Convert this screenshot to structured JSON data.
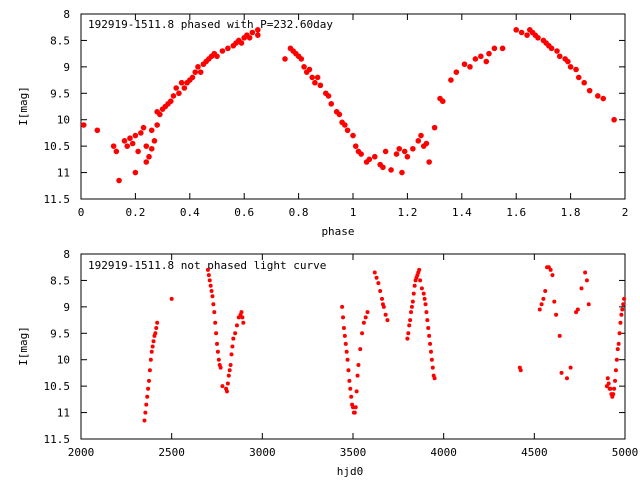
{
  "chart_data": [
    {
      "type": "scatter",
      "title": "192919-1511.8 phased with P=232.60day",
      "xlabel": "phase",
      "ylabel": "I[mag]",
      "xlim": [
        0,
        2
      ],
      "ylim": [
        11.5,
        8
      ],
      "y_inverted": true,
      "grid": false,
      "marker_color": "#ff0000",
      "x_ticks": [
        "0",
        "0.2",
        "0.4",
        "0.6",
        "0.8",
        "1",
        "1.2",
        "1.4",
        "1.6",
        "1.8",
        "2"
      ],
      "x_tick_values": [
        0,
        0.2,
        0.4,
        0.6,
        0.8,
        1.0,
        1.2,
        1.4,
        1.6,
        1.8,
        2.0
      ],
      "y_ticks": [
        "8",
        "8.5",
        "9",
        "9.5",
        "10",
        "10.5",
        "11",
        "11.5"
      ],
      "y_tick_values": [
        8,
        8.5,
        9,
        9.5,
        10,
        10.5,
        11,
        11.5
      ],
      "series": [
        {
          "x": [
            0.01,
            0.06,
            0.12,
            0.13,
            0.14,
            0.16,
            0.17,
            0.18,
            0.19,
            0.2,
            0.2,
            0.21,
            0.22,
            0.23,
            0.24,
            0.24,
            0.25,
            0.26,
            0.26,
            0.27,
            0.28,
            0.28,
            0.29,
            0.3,
            0.31,
            0.32,
            0.33,
            0.34,
            0.35,
            0.36,
            0.37,
            0.38,
            0.39,
            0.4,
            0.41,
            0.42,
            0.43,
            0.44,
            0.45,
            0.46,
            0.47,
            0.48,
            0.49,
            0.5,
            0.52,
            0.54,
            0.56,
            0.57,
            0.58,
            0.59,
            0.6,
            0.61,
            0.62,
            0.63,
            0.65,
            0.65,
            0.75,
            0.77,
            0.78,
            0.79,
            0.8,
            0.81,
            0.82,
            0.83,
            0.84,
            0.85,
            0.86,
            0.87,
            0.88,
            0.9,
            0.91,
            0.92,
            0.94,
            0.95,
            0.96,
            0.97,
            0.98,
            1.0,
            1.01,
            1.02,
            1.03,
            1.05,
            1.06,
            1.08,
            1.1,
            1.11,
            1.12,
            1.14,
            1.16,
            1.17,
            1.18,
            1.19,
            1.2,
            1.22,
            1.24,
            1.25,
            1.26,
            1.27,
            1.28,
            1.3,
            1.32,
            1.33,
            1.36,
            1.38,
            1.41,
            1.43,
            1.45,
            1.47,
            1.49,
            1.5,
            1.52,
            1.55,
            1.6,
            1.62,
            1.64,
            1.65,
            1.66,
            1.67,
            1.68,
            1.7,
            1.71,
            1.72,
            1.73,
            1.75,
            1.76,
            1.78,
            1.79,
            1.8,
            1.82,
            1.83,
            1.85,
            1.87,
            1.9,
            1.92,
            1.96
          ],
          "y": [
            10.1,
            10.2,
            10.5,
            10.6,
            11.15,
            10.4,
            10.5,
            10.35,
            10.45,
            10.3,
            11.0,
            10.6,
            10.25,
            10.15,
            10.5,
            10.8,
            10.7,
            10.55,
            10.2,
            10.4,
            10.1,
            9.85,
            9.9,
            9.8,
            9.75,
            9.7,
            9.65,
            9.55,
            9.4,
            9.5,
            9.3,
            9.4,
            9.3,
            9.25,
            9.2,
            9.1,
            9.0,
            9.1,
            8.95,
            8.9,
            8.85,
            8.8,
            8.75,
            8.8,
            8.7,
            8.65,
            8.6,
            8.55,
            8.5,
            8.55,
            8.45,
            8.4,
            8.45,
            8.35,
            8.3,
            8.4,
            8.85,
            8.65,
            8.7,
            8.75,
            8.8,
            8.85,
            9.0,
            9.1,
            9.05,
            9.2,
            9.3,
            9.2,
            9.35,
            9.5,
            9.55,
            9.7,
            9.85,
            9.9,
            10.05,
            10.1,
            10.2,
            10.3,
            10.5,
            10.6,
            10.65,
            10.8,
            10.75,
            10.7,
            10.85,
            10.9,
            10.6,
            10.95,
            10.65,
            10.55,
            11.0,
            10.6,
            10.7,
            10.55,
            10.4,
            10.3,
            10.5,
            10.45,
            10.8,
            10.15,
            9.6,
            9.65,
            9.25,
            9.1,
            8.95,
            9.0,
            8.85,
            8.8,
            8.9,
            8.75,
            8.65,
            8.65,
            8.3,
            8.35,
            8.4,
            8.3,
            8.35,
            8.4,
            8.45,
            8.5,
            8.55,
            8.6,
            8.65,
            8.7,
            8.8,
            8.85,
            8.9,
            9.0,
            9.05,
            9.2,
            9.3,
            9.45,
            9.55,
            9.6,
            10.0
          ]
        }
      ]
    },
    {
      "type": "scatter",
      "title": "192919-1511.8 not phased light curve",
      "xlabel": "hjd0",
      "ylabel": "I[mag]",
      "xlim": [
        2000,
        5000
      ],
      "ylim": [
        11.5,
        8
      ],
      "y_inverted": true,
      "grid": false,
      "marker_color": "#ff0000",
      "x_ticks": [
        "2000",
        "2500",
        "3000",
        "3500",
        "4000",
        "4500",
        "5000"
      ],
      "x_tick_values": [
        2000,
        2500,
        3000,
        3500,
        4000,
        4500,
        5000
      ],
      "y_ticks": [
        "8",
        "8.5",
        "9",
        "9.5",
        "10",
        "10.5",
        "11",
        "11.5"
      ],
      "y_tick_values": [
        8,
        8.5,
        9,
        9.5,
        10,
        10.5,
        11,
        11.5
      ],
      "series": [
        {
          "x": [
            2350,
            2355,
            2360,
            2365,
            2370,
            2375,
            2380,
            2385,
            2390,
            2395,
            2400,
            2405,
            2410,
            2415,
            2420,
            2500,
            2700,
            2705,
            2710,
            2715,
            2720,
            2725,
            2730,
            2735,
            2740,
            2745,
            2750,
            2755,
            2760,
            2765,
            2770,
            2780,
            2800,
            2805,
            2810,
            2815,
            2820,
            2825,
            2830,
            2835,
            2840,
            2850,
            2860,
            2870,
            2880,
            2885,
            2890,
            2895,
            3440,
            3445,
            3450,
            3455,
            3460,
            3465,
            3470,
            3475,
            3480,
            3485,
            3490,
            3495,
            3500,
            3505,
            3510,
            3515,
            3520,
            3525,
            3530,
            3540,
            3550,
            3560,
            3570,
            3580,
            3620,
            3630,
            3640,
            3650,
            3660,
            3665,
            3670,
            3680,
            3690,
            3800,
            3805,
            3810,
            3815,
            3820,
            3825,
            3830,
            3835,
            3840,
            3845,
            3850,
            3855,
            3860,
            3865,
            3870,
            3880,
            3890,
            3895,
            3900,
            3905,
            3910,
            3915,
            3920,
            3925,
            3930,
            3935,
            3940,
            3945,
            3950,
            4420,
            4425,
            4530,
            4540,
            4550,
            4560,
            4570,
            4580,
            4590,
            4600,
            4610,
            4620,
            4640,
            4650,
            4680,
            4700,
            4730,
            4740,
            4760,
            4780,
            4790,
            4800,
            4900,
            4905,
            4910,
            4915,
            4920,
            4925,
            4930,
            4935,
            4940,
            4945,
            4950,
            4955,
            4960,
            4965,
            4970,
            4975,
            4980,
            4985,
            4990,
            4995
          ],
          "y": [
            11.15,
            11.0,
            10.85,
            10.7,
            10.55,
            10.4,
            10.2,
            10.0,
            9.85,
            9.75,
            9.65,
            9.55,
            9.5,
            9.4,
            9.3,
            8.85,
            8.3,
            8.4,
            8.5,
            8.6,
            8.7,
            8.8,
            8.95,
            9.1,
            9.3,
            9.5,
            9.7,
            9.85,
            10.0,
            10.1,
            10.15,
            10.5,
            10.55,
            10.6,
            10.45,
            10.3,
            10.2,
            10.1,
            9.9,
            9.75,
            9.6,
            9.5,
            9.35,
            9.2,
            9.15,
            9.1,
            9.2,
            9.3,
            9.0,
            9.2,
            9.4,
            9.55,
            9.7,
            9.85,
            10.0,
            10.2,
            10.4,
            10.55,
            10.7,
            10.85,
            10.9,
            11.0,
            11.0,
            10.9,
            10.6,
            10.3,
            10.1,
            9.8,
            9.5,
            9.3,
            9.2,
            9.1,
            8.35,
            8.45,
            8.55,
            8.7,
            8.85,
            8.95,
            9.0,
            9.15,
            9.25,
            9.6,
            9.5,
            9.35,
            9.25,
            9.1,
            9.0,
            8.9,
            8.75,
            8.6,
            8.5,
            8.45,
            8.4,
            8.35,
            8.3,
            8.5,
            8.65,
            8.75,
            8.85,
            8.95,
            9.1,
            9.25,
            9.4,
            9.55,
            9.7,
            9.85,
            10.0,
            10.15,
            10.3,
            10.35,
            10.15,
            10.2,
            9.05,
            8.95,
            8.85,
            8.7,
            8.25,
            8.25,
            8.3,
            8.4,
            8.9,
            9.15,
            9.55,
            10.25,
            10.35,
            10.15,
            9.1,
            9.05,
            8.65,
            8.35,
            8.5,
            8.95,
            10.5,
            10.35,
            10.45,
            10.55,
            10.55,
            10.65,
            10.7,
            10.65,
            10.55,
            10.4,
            10.2,
            10.0,
            9.8,
            9.7,
            9.5,
            9.3,
            9.15,
            9.05,
            8.95,
            8.85
          ]
        }
      ]
    }
  ]
}
